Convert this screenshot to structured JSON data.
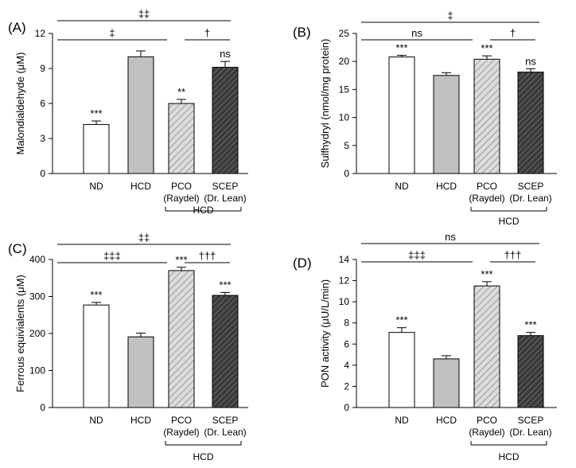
{
  "chart_data": [
    {
      "type": "bar",
      "panel_label": "(A)",
      "ylabel": "Malondialdehyde (μM)",
      "ylim": [
        0,
        12
      ],
      "yticks": [
        "0",
        "3",
        "6",
        "9",
        "12"
      ],
      "categories": [
        "ND",
        "HCD",
        "PCO",
        "SCEP"
      ],
      "sublabels": [
        "",
        "",
        "(Raydel)",
        "(Dr. Lean)"
      ],
      "values": [
        4.2,
        10.0,
        6.0,
        9.1
      ],
      "errors": [
        0.3,
        0.5,
        0.35,
        0.5
      ],
      "fills": [
        "white",
        "lightgray",
        "diagonal-light",
        "diagonal-dark"
      ],
      "marks": [
        "***",
        "",
        "**",
        "ns"
      ],
      "group_label": "HCD",
      "comparisons": [
        {
          "from": 0,
          "to": 3,
          "label": "‡‡",
          "level": 2
        },
        {
          "from": 0,
          "to": 2,
          "label": "‡",
          "level": 1
        },
        {
          "from": 2,
          "to": 3,
          "label": "†",
          "level": 1
        }
      ]
    },
    {
      "type": "bar",
      "panel_label": "(B)",
      "ylabel": "Sulfhydryl (nmol/mg protein)",
      "ylim": [
        0,
        25
      ],
      "yticks": [
        "0",
        "5",
        "10",
        "15",
        "20",
        "25"
      ],
      "categories": [
        "ND",
        "HCD",
        "PCO",
        "SCEP"
      ],
      "sublabels": [
        "",
        "",
        "(Raydel)",
        "(Dr. Lean)"
      ],
      "values": [
        20.8,
        17.5,
        20.4,
        18.1
      ],
      "errors": [
        0.3,
        0.5,
        0.6,
        0.6
      ],
      "fills": [
        "white",
        "lightgray",
        "diagonal-light",
        "diagonal-dark"
      ],
      "marks": [
        "***",
        "",
        "***",
        "ns"
      ],
      "group_label": "HCD",
      "comparisons": [
        {
          "from": 0,
          "to": 3,
          "label": "‡",
          "level": 2
        },
        {
          "from": 0,
          "to": 2,
          "label": "ns",
          "level": 1
        },
        {
          "from": 2,
          "to": 3,
          "label": "†",
          "level": 1
        }
      ]
    },
    {
      "type": "bar",
      "panel_label": "(C)",
      "ylabel": "Ferrous equivialents (μM)",
      "ylim": [
        0,
        400
      ],
      "yticks": [
        "0",
        "100",
        "200",
        "300",
        "400"
      ],
      "categories": [
        "ND",
        "HCD",
        "PCO",
        "SCEP"
      ],
      "sublabels": [
        "",
        "",
        "(Raydel)",
        "(Dr. Lean)"
      ],
      "values": [
        277,
        191,
        370,
        303
      ],
      "errors": [
        7,
        10,
        9,
        8
      ],
      "fills": [
        "white",
        "lightgray",
        "diagonal-light",
        "diagonal-dark"
      ],
      "marks": [
        "***",
        "",
        "***",
        "***"
      ],
      "group_label": "HCD",
      "comparisons": [
        {
          "from": 0,
          "to": 3,
          "label": "‡‡",
          "level": 2
        },
        {
          "from": 0,
          "to": 2,
          "label": "‡‡‡",
          "level": 1
        },
        {
          "from": 2,
          "to": 3,
          "label": "†††",
          "level": 1
        }
      ]
    },
    {
      "type": "bar",
      "panel_label": "(D)",
      "ylabel": "PON activity (μU/L/min)",
      "ylim": [
        0,
        14
      ],
      "yticks": [
        "0",
        "2",
        "4",
        "6",
        "8",
        "10",
        "12",
        "14"
      ],
      "categories": [
        "ND",
        "HCD",
        "PCO",
        "SCEP"
      ],
      "sublabels": [
        "",
        "",
        "(Raydel)",
        "(Dr. Lean)"
      ],
      "values": [
        7.1,
        4.6,
        11.5,
        6.8
      ],
      "errors": [
        0.45,
        0.3,
        0.4,
        0.3
      ],
      "fills": [
        "white",
        "lightgray",
        "diagonal-light",
        "diagonal-dark"
      ],
      "marks": [
        "***",
        "",
        "***",
        "***"
      ],
      "group_label": "HCD",
      "comparisons": [
        {
          "from": 0,
          "to": 3,
          "label": "ns",
          "level": 2
        },
        {
          "from": 0,
          "to": 2,
          "label": "‡‡‡",
          "level": 1
        },
        {
          "from": 2,
          "to": 3,
          "label": "†††",
          "level": 1
        }
      ]
    }
  ]
}
